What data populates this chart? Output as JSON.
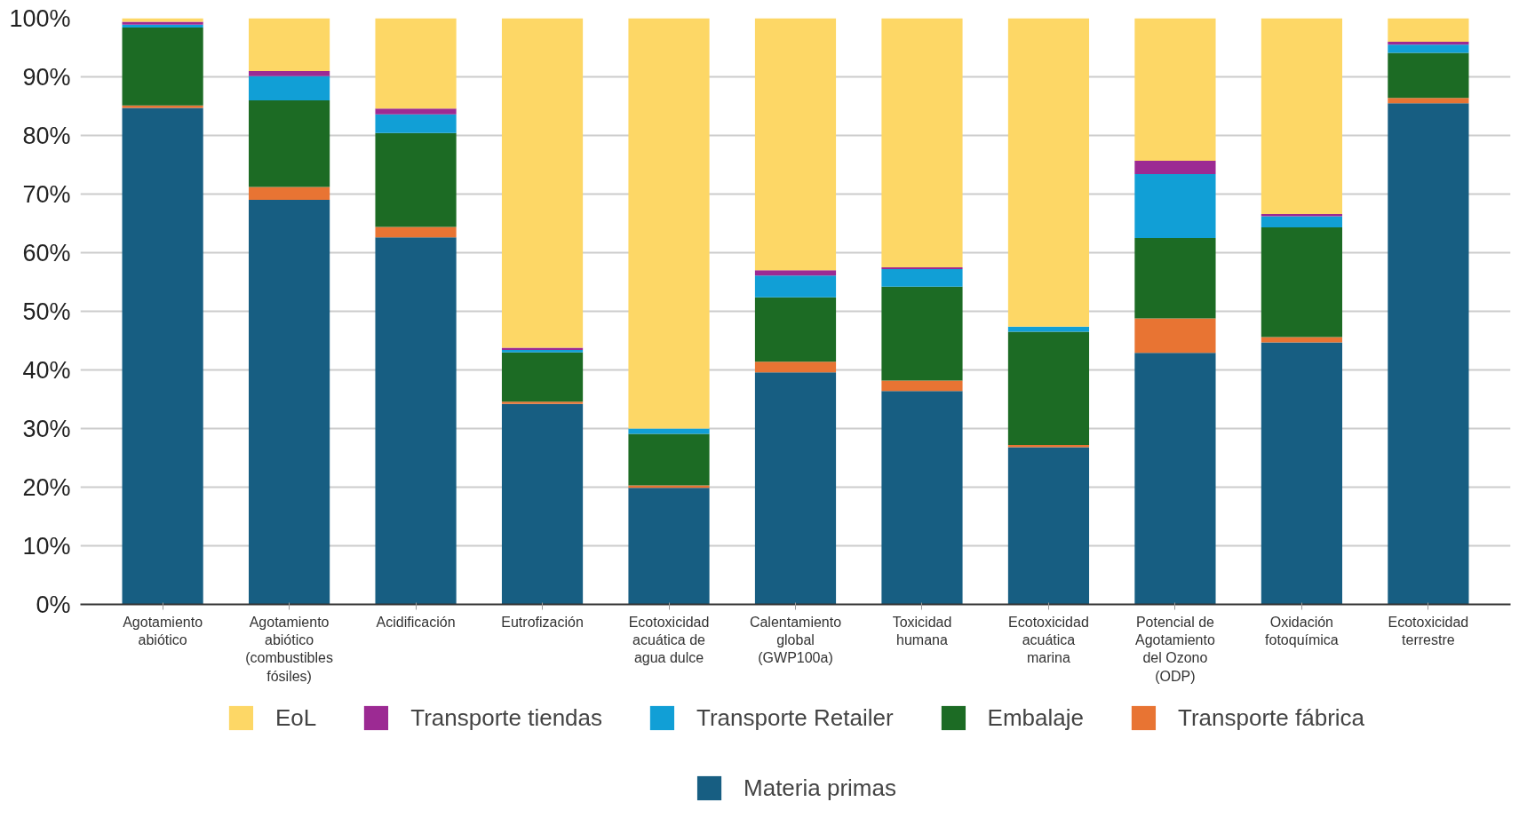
{
  "chart_data": {
    "type": "bar",
    "stacked": true,
    "categories": [
      "Agotamiento abiótico",
      "Agotamiento abiótico (combustibles fósiles)",
      "Acidificación",
      "Eutrofización",
      "Ecotoxicidad acuática de agua dulce",
      "Calentamiento global (GWP100a)",
      "Toxicidad humana",
      "Ecotoxicidad acuática marina",
      "Potencial de Agotamiento del Ozono (ODP)",
      "Oxidación fotoquímica",
      "Ecotoxicidad terrestre"
    ],
    "series": [
      {
        "name": "Materia primas",
        "color": "#175e82",
        "values": [
          84.7,
          69.0,
          62.6,
          34.2,
          19.9,
          39.6,
          36.4,
          26.8,
          42.9,
          44.7,
          85.5
        ]
      },
      {
        "name": "Transporte fábrica",
        "color": "#e87433",
        "values": [
          0.4,
          2.2,
          1.8,
          0.4,
          0.4,
          1.8,
          1.8,
          0.4,
          5.9,
          0.9,
          0.9
        ]
      },
      {
        "name": "Embalaje",
        "color": "#1c6b24",
        "values": [
          13.3,
          14.8,
          16.0,
          8.4,
          8.8,
          11.0,
          16.0,
          19.3,
          13.7,
          18.7,
          7.7
        ]
      },
      {
        "name": "Transporte Retailer",
        "color": "#119fd6",
        "values": [
          0.5,
          4.1,
          3.2,
          0.4,
          0.9,
          3.7,
          3.0,
          0.9,
          10.9,
          1.9,
          1.4
        ]
      },
      {
        "name": "Transporte tiendas",
        "color": "#9c2a93",
        "values": [
          0.5,
          0.9,
          1.0,
          0.4,
          0,
          0.9,
          0.3,
          0,
          2.3,
          0.4,
          0.5
        ]
      },
      {
        "name": "EoL",
        "color": "#fdd766",
        "values": [
          0.6,
          9.0,
          15.4,
          56.2,
          70.0,
          43.0,
          42.5,
          52.6,
          24.3,
          33.4,
          4.0
        ]
      }
    ],
    "ylim": [
      0,
      100
    ],
    "yticks": [
      {
        "value": 0,
        "label": "0%"
      },
      {
        "value": 10,
        "label": "10%"
      },
      {
        "value": 20,
        "label": "20%"
      },
      {
        "value": 30,
        "label": "30%"
      },
      {
        "value": 40,
        "label": "40%"
      },
      {
        "value": 50,
        "label": "50%"
      },
      {
        "value": 60,
        "label": "60%"
      },
      {
        "value": 70,
        "label": "70%"
      },
      {
        "value": 80,
        "label": "80%"
      },
      {
        "value": 90,
        "label": "90%"
      },
      {
        "value": 100,
        "label": "100%"
      }
    ],
    "grid": "y",
    "legend": "bottom"
  }
}
